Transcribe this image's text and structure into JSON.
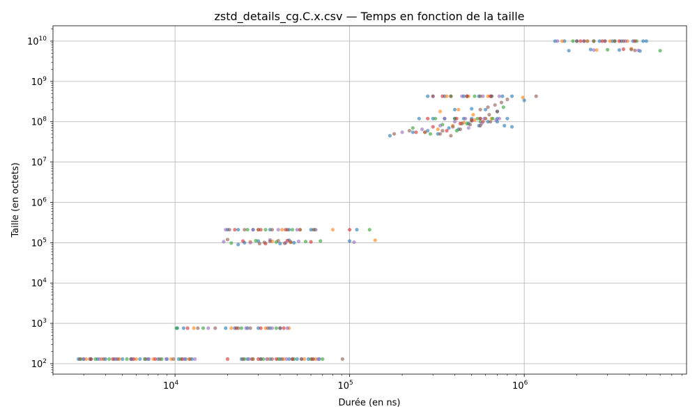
{
  "chart_data": {
    "type": "scatter",
    "title": "zstd_details_cg.C.x.csv — Temps en fonction de la taille",
    "xlabel": "Durée (en ns)",
    "ylabel": "Taille (en octets)",
    "xscale": "log",
    "yscale": "log",
    "xlim": [
      2000,
      8500000
    ],
    "ylim": [
      55,
      24000000000
    ],
    "grid": true,
    "xticks": [
      {
        "base": "10",
        "exp": "4",
        "value": 10000
      },
      {
        "base": "10",
        "exp": "5",
        "value": 100000
      },
      {
        "base": "10",
        "exp": "6",
        "value": 1000000
      }
    ],
    "yticks": [
      {
        "base": "10",
        "exp": "2",
        "value": 100
      },
      {
        "base": "10",
        "exp": "3",
        "value": 1000
      },
      {
        "base": "10",
        "exp": "4",
        "value": 10000
      },
      {
        "base": "10",
        "exp": "5",
        "value": 100000
      },
      {
        "base": "10",
        "exp": "6",
        "value": 1000000
      },
      {
        "base": "10",
        "exp": "7",
        "value": 10000000
      },
      {
        "base": "10",
        "exp": "8",
        "value": 100000000
      },
      {
        "base": "10",
        "exp": "9",
        "value": 1000000000
      },
      {
        "base": "10",
        "exp": "10",
        "value": 10000000000
      }
    ],
    "colors": [
      "#1f77b4",
      "#ff7f0e",
      "#2ca02c",
      "#d62728",
      "#9467bd",
      "#8c564b"
    ],
    "point_alpha": 0.6,
    "series": [
      {
        "x": [
          2800,
          3000,
          3300,
          3600,
          4000,
          4500,
          5000,
          5600,
          6300,
          7000,
          8000,
          9000,
          10500,
          11500,
          12500,
          24000,
          26000,
          28000,
          31000,
          35000,
          40000,
          45000,
          50000,
          58000,
          67000,
          10300,
          11200,
          19500,
          22000,
          26000,
          30000,
          35000,
          40000,
          23000,
          25000,
          30000,
          40000,
          45000,
          48000,
          100000,
          20000,
          23000,
          28000,
          35000,
          45000,
          60000,
          110000,
          170000,
          230000,
          280000,
          320000,
          370000,
          420000,
          480000,
          550000,
          620000,
          700000,
          770000,
          850000,
          250000,
          300000,
          350000,
          400000,
          450000,
          500000,
          600000,
          700000,
          800000,
          280000,
          350000,
          450000,
          550000,
          650000,
          750000,
          850000,
          1000000,
          400000,
          500000,
          600000,
          700000,
          1500000,
          1700000,
          2000000,
          2300000,
          2700000,
          3200000,
          3600000,
          4200000,
          4800000,
          5000000,
          1800000,
          2400000,
          3500000,
          4600000
        ],
        "y": [
          130,
          130,
          130,
          130,
          130,
          130,
          130,
          130,
          130,
          130,
          130,
          130,
          130,
          130,
          130,
          130,
          130,
          130,
          130,
          130,
          130,
          130,
          130,
          130,
          130,
          760,
          760,
          760,
          760,
          760,
          760,
          760,
          760,
          90000,
          100000,
          110000,
          95000,
          115000,
          100000,
          110000,
          210000,
          210000,
          210000,
          210000,
          210000,
          210000,
          210000,
          45000000,
          55000000,
          60000000,
          50000000,
          70000000,
          65000000,
          90000000,
          80000000,
          100000000,
          100000000,
          80000000,
          75000000,
          120000000,
          120000000,
          120000000,
          120000000,
          120000000,
          120000000,
          120000000,
          120000000,
          120000000,
          430000000,
          430000000,
          430000000,
          430000000,
          430000000,
          430000000,
          430000000,
          340000000,
          200000000,
          210000000,
          200000000,
          180000000,
          10000000000,
          10000000000,
          10000000000,
          10000000000,
          10000000000,
          10000000000,
          10000000000,
          10000000000,
          10000000000,
          10000000000,
          5800000000,
          6200000000,
          6000000000,
          5700000000
        ]
      },
      {
        "x": [
          3100,
          3800,
          4800,
          6000,
          7500,
          9500,
          12000,
          28000,
          34000,
          42000,
          55000,
          64000,
          12800,
          21000,
          33000,
          45000,
          27000,
          36000,
          46000,
          140000,
          30000,
          41000,
          52000,
          80000,
          270000,
          320000,
          390000,
          450000,
          520000,
          600000,
          330000,
          420000,
          510000,
          650000,
          360000,
          480000,
          620000,
          980000,
          1650000,
          2300000,
          3100000,
          3900000,
          2600000,
          4100000
        ],
        "y": [
          130,
          130,
          130,
          130,
          130,
          130,
          130,
          130,
          130,
          130,
          130,
          130,
          760,
          760,
          760,
          760,
          105000,
          108000,
          102000,
          115000,
          210000,
          210000,
          210000,
          210000,
          55000000,
          65000000,
          80000000,
          95000000,
          110000000,
          120000000,
          180000000,
          200000000,
          150000000,
          120000000,
          430000000,
          430000000,
          430000000,
          400000000,
          10000000000,
          10000000000,
          10000000000,
          10000000000,
          6000000000,
          6500000000
        ]
      },
      {
        "x": [
          2900,
          3500,
          4200,
          5300,
          6700,
          8400,
          10800,
          25000,
          32000,
          39000,
          48000,
          60000,
          70000,
          10200,
          14500,
          24000,
          38000,
          21000,
          29000,
          38000,
          56000,
          68000,
          26000,
          33000,
          47000,
          63000,
          130000,
          230000,
          290000,
          340000,
          410000,
          470000,
          560000,
          660000,
          310000,
          400000,
          540000,
          380000,
          520000,
          760000,
          1900000,
          2500000,
          3300000,
          4400000,
          6000000,
          3000000
        ],
        "y": [
          130,
          130,
          130,
          130,
          130,
          130,
          130,
          130,
          130,
          130,
          130,
          130,
          130,
          760,
          760,
          760,
          760,
          98000,
          112000,
          104000,
          107000,
          110000,
          210000,
          210000,
          210000,
          210000,
          210000,
          70000000,
          50000000,
          85000000,
          60000000,
          90000000,
          100000000,
          120000000,
          120000000,
          120000000,
          120000000,
          430000000,
          430000000,
          230000000,
          10000000000,
          10000000000,
          10000000000,
          10000000000,
          5800000000,
          6100000000
        ]
      },
      {
        "x": [
          3300,
          4400,
          5800,
          7700,
          11000,
          20000,
          30000,
          38000,
          47000,
          61000,
          11800,
          22500,
          31000,
          42000,
          24500,
          33000,
          44000,
          60000,
          22000,
          31000,
          43000,
          100000,
          240000,
          300000,
          360000,
          430000,
          500000,
          580000,
          280000,
          410000,
          560000,
          340000,
          470000,
          640000,
          2100000,
          2800000,
          3500000,
          4300000,
          3700000
        ],
        "y": [
          130,
          130,
          130,
          130,
          130,
          130,
          130,
          130,
          130,
          130,
          760,
          760,
          760,
          760,
          110000,
          95000,
          113000,
          105000,
          210000,
          210000,
          210000,
          210000,
          55000000,
          75000000,
          60000000,
          90000000,
          110000000,
          100000000,
          120000000,
          120000000,
          120000000,
          430000000,
          430000000,
          430000000,
          10000000000,
          10000000000,
          10000000000,
          10000000000,
          6300000000
        ]
      },
      {
        "x": [
          3000,
          3700,
          4600,
          5700,
          7100,
          8900,
          11300,
          13000,
          26500,
          33500,
          43500,
          53000,
          66000,
          15500,
          25500,
          36000,
          44000,
          19000,
          27000,
          35000,
          43000,
          51000,
          106000,
          19500,
          28000,
          39000,
          50000,
          64000,
          200000,
          260000,
          330000,
          400000,
          480000,
          570000,
          690000,
          350000,
          460000,
          590000,
          720000,
          300000,
          440000,
          580000,
          720000,
          1550000,
          2200000,
          2900000,
          3800000,
          2500000,
          4500000
        ],
        "y": [
          130,
          130,
          130,
          130,
          130,
          130,
          130,
          130,
          130,
          130,
          130,
          130,
          130,
          760,
          760,
          760,
          760,
          106000,
          101000,
          117000,
          99000,
          108000,
          103000,
          210000,
          210000,
          210000,
          210000,
          210000,
          55000000,
          65000000,
          80000000,
          100000000,
          70000000,
          90000000,
          110000000,
          120000000,
          120000000,
          120000000,
          120000000,
          430000000,
          430000000,
          430000000,
          430000000,
          10000000000,
          10000000000,
          10000000000,
          10000000000,
          6000000000,
          5900000000
        ]
      },
      {
        "x": [
          2850,
          3250,
          3900,
          4700,
          5600,
          6800,
          8200,
          9800,
          12200,
          24500,
          27500,
          31000,
          36000,
          41000,
          47000,
          53000,
          62000,
          91000,
          13500,
          17000,
          23000,
          27000,
          34000,
          40000,
          20000,
          30500,
          32500,
          35000,
          39000,
          42500,
          46000,
          20500,
          25000,
          30000,
          36000,
          44000,
          52000,
          62000,
          180000,
          220000,
          270000,
          330000,
          380000,
          430000,
          490000,
          560000,
          640000,
          340000,
          390000,
          440000,
          500000,
          560000,
          630000,
          700000,
          560000,
          620000,
          680000,
          740000,
          800000,
          300000,
          380000,
          470000,
          560000,
          650000,
          1170000,
          2000000,
          2200000,
          2500000,
          2900000,
          3300000,
          3700000,
          4100000,
          4300000
        ],
        "y": [
          130,
          130,
          130,
          130,
          130,
          130,
          130,
          130,
          130,
          130,
          130,
          130,
          130,
          130,
          130,
          130,
          130,
          130,
          760,
          760,
          760,
          760,
          760,
          760,
          120000,
          95000,
          102000,
          108000,
          112000,
          97000,
          104000,
          210000,
          210000,
          210000,
          210000,
          210000,
          210000,
          210000,
          50000000,
          60000000,
          55000000,
          50000000,
          45000000,
          65000000,
          85000000,
          80000000,
          100000000,
          60000000,
          75000000,
          90000000,
          105000000,
          120000000,
          150000000,
          180000000,
          200000000,
          230000000,
          260000000,
          300000000,
          360000000,
          430000000,
          430000000,
          430000000,
          430000000,
          430000000,
          430000000,
          10000000000,
          10000000000,
          10000000000,
          10000000000,
          10000000000,
          10000000000,
          6200000000,
          5900000000
        ]
      }
    ]
  }
}
